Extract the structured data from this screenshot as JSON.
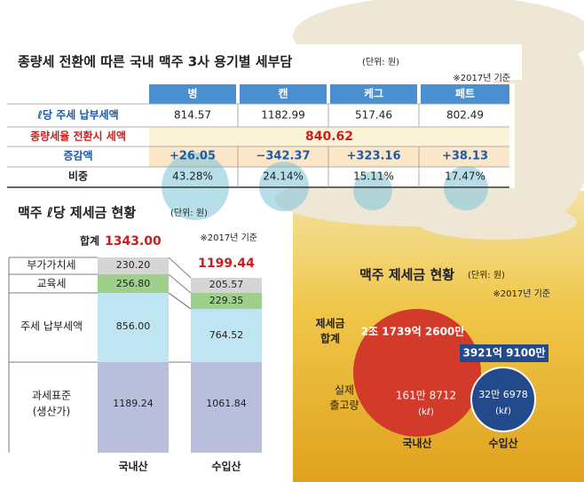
{
  "table": {
    "title": "종량세 전환에 따른 국내 맥주 3사 용기별 세부담",
    "unit": "(단위: 원)",
    "note": "※2017년 기준",
    "headers": [
      "병",
      "캔",
      "케그",
      "페트"
    ],
    "rows": [
      {
        "label": "ℓ당 주세 납부세액",
        "values": [
          "814.57",
          "1182.99",
          "517.46",
          "802.49"
        ]
      },
      {
        "label": "종량세율 전환시 세액",
        "values": [
          "840.62"
        ]
      },
      {
        "label": "증감액",
        "values": [
          "+26.05",
          "−342.37",
          "+323.16",
          "+38.13"
        ]
      },
      {
        "label": "비중",
        "values": [
          "43.28%",
          "24.14%",
          "15.11%",
          "17.47%"
        ]
      }
    ]
  },
  "stacked": {
    "title": "맥주 ℓ당 제세금 현황",
    "unit": "(단위: 원)",
    "note": "※2017년 기준",
    "total_label": "합계",
    "totals": [
      "1343.00",
      "1199.44"
    ],
    "segments": [
      {
        "label": [
          "부가가치세"
        ],
        "values": [
          "230.20",
          "205.57"
        ]
      },
      {
        "label": [
          "교육세"
        ],
        "values": [
          "256.80",
          "229.35"
        ]
      },
      {
        "label": [
          "주세 납부세액"
        ],
        "values": [
          "856.00",
          "764.52"
        ]
      },
      {
        "label": [
          "과세표준",
          "(생산가)"
        ],
        "values": [
          "1189.24",
          "1061.84"
        ]
      }
    ],
    "categories": [
      "국내산",
      "수입산"
    ]
  },
  "bubble": {
    "title": "맥주 제세금 현황",
    "unit": "(단위: 원)",
    "note": "※2017년 기준",
    "tax_label": [
      "제세금",
      "합계"
    ],
    "volume_label": [
      "실제",
      "출고량"
    ],
    "tax": [
      "2조 1739억 2600만",
      "3921억 9100만"
    ],
    "volume": [
      "161만 8712",
      "32만 6978"
    ],
    "volume_unit": "(kℓ)",
    "categories": [
      "국내산",
      "수입산"
    ]
  }
}
